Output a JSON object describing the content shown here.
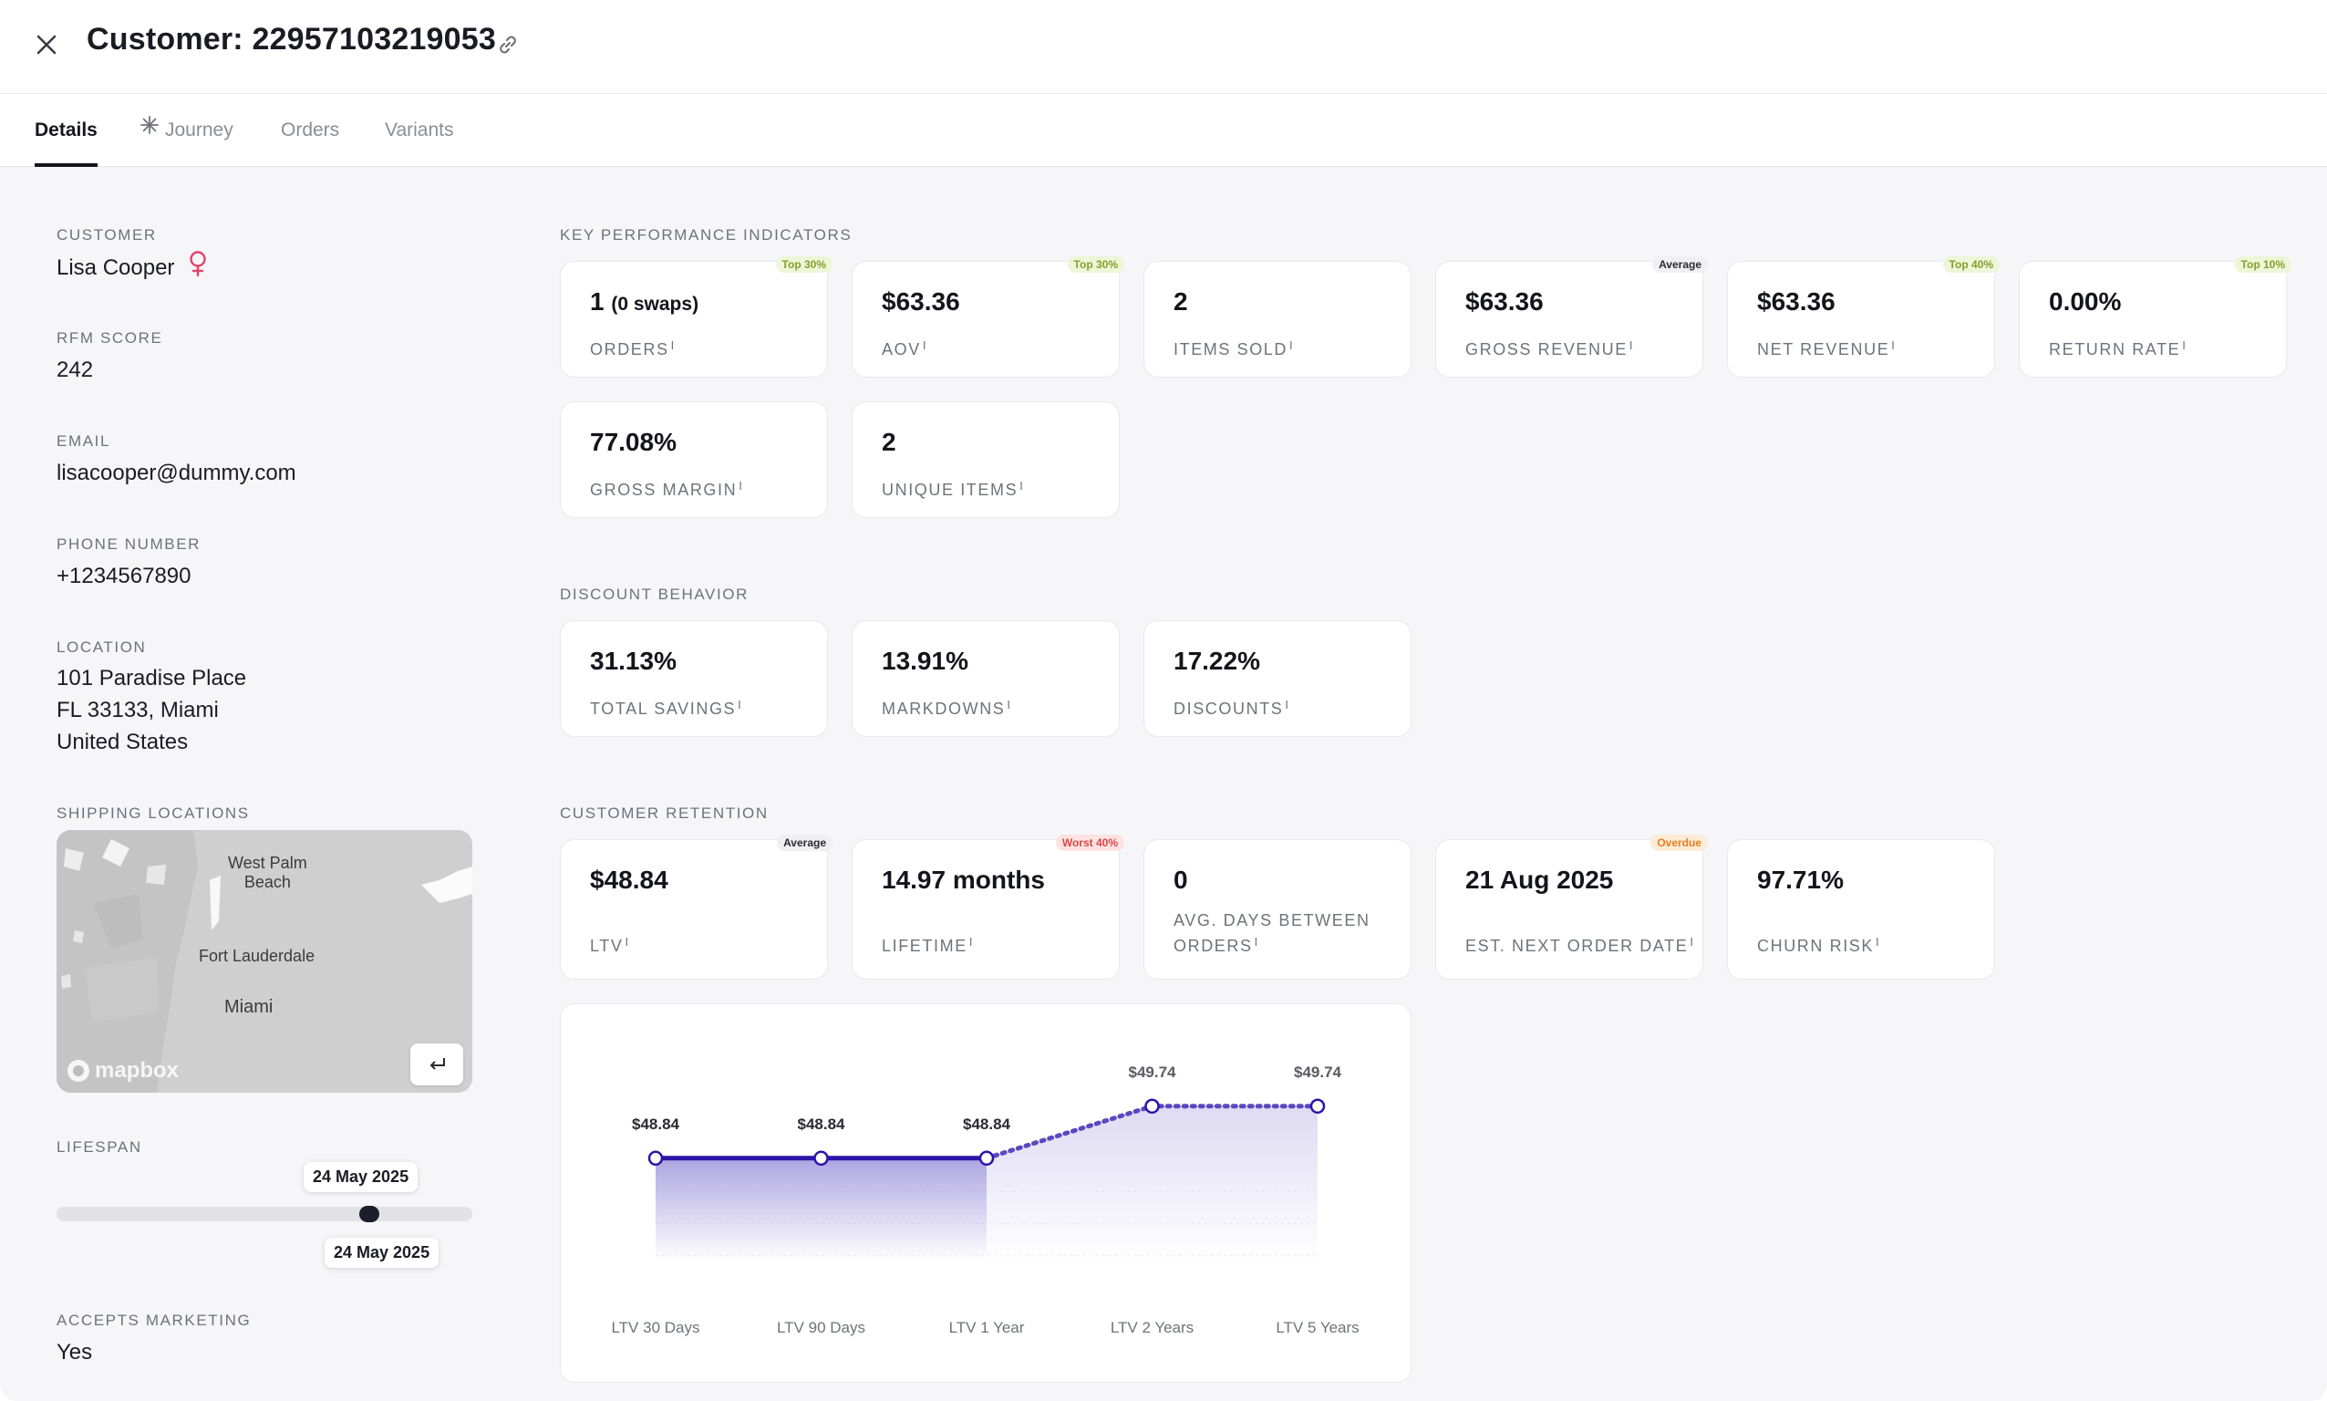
{
  "header": {
    "title": "Customer: 22957103219053",
    "close_icon": "close-icon",
    "link_icon": "link-icon"
  },
  "tabs": [
    {
      "label": "Details",
      "active": true
    },
    {
      "label": "Journey",
      "icon": "sparkle-icon"
    },
    {
      "label": "Orders"
    },
    {
      "label": "Variants"
    }
  ],
  "sidebar": {
    "customer_label": "CUSTOMER",
    "customer_name": "Lisa Cooper",
    "gender_icon": "female-icon",
    "rfm_label": "RFM SCORE",
    "rfm_value": "242",
    "email_label": "EMAIL",
    "email_value": "lisacooper@dummy.com",
    "phone_label": "PHONE NUMBER",
    "phone_value": "+1234567890",
    "location_label": "LOCATION",
    "location_line1": "101 Paradise Place",
    "location_line2": "FL 33133, Miami",
    "location_line3": "United States",
    "shipping_label": "SHIPPING LOCATIONS",
    "map": {
      "city_west_palm": "West Palm\nBeach",
      "city_fort_lauderdale": "Fort Lauderdale",
      "city_miami": "Miami",
      "logo_text": "mapbox"
    },
    "lifespan_label": "LIFESPAN",
    "lifespan_start": "24 May 2025",
    "lifespan_end": "24 May 2025",
    "marketing_label": "ACCEPTS MARKETING",
    "marketing_value": "Yes"
  },
  "kpi": {
    "section_label": "KEY PERFORMANCE INDICATORS",
    "cards": [
      {
        "value": "1",
        "value_suffix": "(0 swaps)",
        "label": "ORDERS",
        "badge": "Top 30%",
        "badge_type": "green"
      },
      {
        "value": "$63.36",
        "label": "AOV",
        "badge": "Top 30%",
        "badge_type": "green"
      },
      {
        "value": "2",
        "label": "ITEMS SOLD"
      },
      {
        "value": "$63.36",
        "label": "GROSS REVENUE",
        "badge": "Average",
        "badge_type": "neutral"
      },
      {
        "value": "$63.36",
        "label": "NET REVENUE",
        "badge": "Top 40%",
        "badge_type": "green"
      },
      {
        "value": "0.00%",
        "label": "RETURN RATE",
        "badge": "Top 10%",
        "badge_type": "green"
      },
      {
        "value": "77.08%",
        "label": "GROSS MARGIN"
      },
      {
        "value": "2",
        "label": "UNIQUE ITEMS"
      }
    ]
  },
  "discount": {
    "section_label": "DISCOUNT BEHAVIOR",
    "cards": [
      {
        "value": "31.13%",
        "label": "TOTAL SAVINGS"
      },
      {
        "value": "13.91%",
        "label": "MARKDOWNS"
      },
      {
        "value": "17.22%",
        "label": "DISCOUNTS"
      }
    ]
  },
  "retention": {
    "section_label": "CUSTOMER RETENTION",
    "cards": [
      {
        "value": "$48.84",
        "label": "LTV",
        "badge": "Average",
        "badge_type": "neutral"
      },
      {
        "value": "14.97 months",
        "label": "LIFETIME",
        "badge": "Worst 40%",
        "badge_type": "red"
      },
      {
        "value": "0",
        "label": "AVG. DAYS BETWEEN ORDERS"
      },
      {
        "value": "21 Aug 2025",
        "label": "EST. NEXT ORDER DATE",
        "badge": "Overdue",
        "badge_type": "orange"
      },
      {
        "value": "97.71%",
        "label": "CHURN RISK"
      }
    ]
  },
  "info_marker": "i",
  "chart_data": {
    "type": "line",
    "categories": [
      "LTV 30 Days",
      "LTV 90 Days",
      "LTV 1 Year",
      "LTV 2 Years",
      "LTV 5 Years"
    ],
    "values": [
      48.84,
      48.84,
      48.84,
      49.74,
      49.74
    ],
    "data_labels": [
      "$48.84",
      "$48.84",
      "$48.84",
      "$49.74",
      "$49.74"
    ],
    "projected_from_index": 2,
    "colors": {
      "line": "#2d14a8",
      "fill": "#6a5bc8",
      "projected": "#5b48c0"
    }
  }
}
